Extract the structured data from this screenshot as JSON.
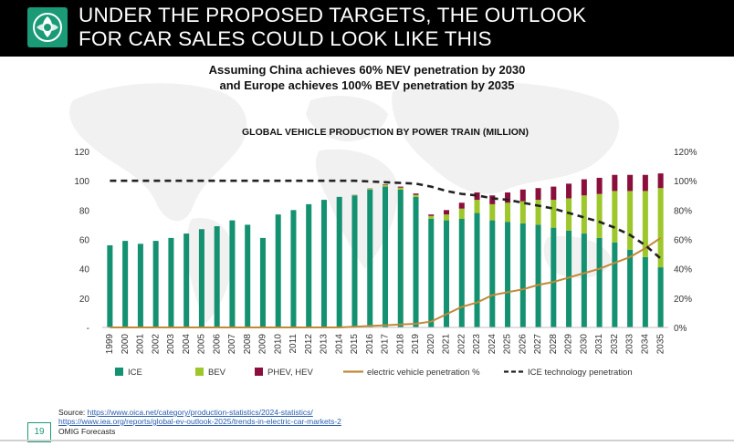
{
  "header": {
    "title_line1": "UNDER THE PROPOSED TARGETS, THE OUTLOOK",
    "title_line2": "FOR CAR SALES COULD LOOK LIKE THIS"
  },
  "subtitle": {
    "line1": "Assuming China achieves 60% NEV penetration by 2030",
    "line2": "and Europe achieves 100% BEV penetration by 2035"
  },
  "chart_data": {
    "type": "bar",
    "stacked": true,
    "title": "GLOBAL VEHICLE PRODUCTION BY  POWER TRAIN (MILLION)",
    "categories": [
      "1999",
      "2000",
      "2001",
      "2002",
      "2003",
      "2004",
      "2005",
      "2006",
      "2007",
      "2008",
      "2009",
      "2010",
      "2011",
      "2012",
      "2013",
      "2014",
      "2015",
      "2016",
      "2017",
      "2018",
      "2019",
      "2020",
      "2021",
      "2022",
      "2023",
      "2024",
      "2025",
      "2026",
      "2027",
      "2028",
      "2029",
      "2030",
      "2031",
      "2032",
      "2033",
      "2034",
      "2035"
    ],
    "series": [
      {
        "name": "ICE",
        "kind": "bar",
        "axis": "left",
        "color": "#149170",
        "values": [
          56,
          59,
          57,
          59,
          61,
          64,
          67,
          69,
          73,
          70,
          61,
          77,
          80,
          84,
          87,
          89,
          90,
          94,
          96,
          94,
          89,
          74,
          73,
          74,
          78,
          73,
          72,
          71,
          70,
          68,
          66,
          64,
          61,
          58,
          53,
          48,
          41
        ]
      },
      {
        "name": "BEV",
        "kind": "bar",
        "axis": "left",
        "color": "#9dc72a",
        "values": [
          0,
          0,
          0,
          0,
          0,
          0,
          0,
          0,
          0,
          0,
          0,
          0,
          0,
          0,
          0,
          0,
          0.3,
          0.5,
          1,
          1.3,
          1.4,
          2,
          4,
          7,
          9,
          11,
          13,
          15,
          17,
          19,
          22,
          26,
          30,
          35,
          40,
          45,
          54
        ]
      },
      {
        "name": "PHEV, HEV",
        "kind": "bar",
        "axis": "left",
        "color": "#8b0f3c",
        "values": [
          0,
          0,
          0,
          0,
          0,
          0,
          0,
          0,
          0,
          0,
          0,
          0,
          0,
          0,
          0,
          0,
          0.1,
          0.2,
          0.4,
          0.7,
          0.9,
          1,
          3,
          4,
          5,
          6,
          7,
          8,
          8,
          9,
          10,
          11,
          11,
          11,
          11,
          11,
          10
        ]
      },
      {
        "name": "electric vehicle penetration %",
        "kind": "line",
        "axis": "right",
        "color": "#c08a3a",
        "dash": "solid",
        "values": [
          0,
          0,
          0,
          0,
          0,
          0,
          0,
          0,
          0,
          0,
          0,
          0,
          0,
          0,
          0,
          0,
          0.5,
          1,
          1.5,
          2,
          2.5,
          4,
          9,
          14,
          17,
          22,
          24,
          26,
          29,
          31,
          34,
          37,
          40,
          44,
          48,
          54,
          61
        ]
      },
      {
        "name": "ICE technology penetration",
        "kind": "line",
        "axis": "right",
        "color": "#222222",
        "dash": "dashed",
        "values": [
          100,
          100,
          100,
          100,
          100,
          100,
          100,
          100,
          100,
          100,
          100,
          100,
          100,
          100,
          100,
          100,
          100,
          99.5,
          99,
          98.5,
          98,
          96,
          93,
          91,
          90,
          88,
          87,
          85,
          83,
          81,
          78,
          75,
          72,
          68,
          63,
          56,
          47
        ]
      }
    ],
    "y_left": {
      "min": 0,
      "max": 120,
      "ticks": [
        0,
        20,
        40,
        60,
        80,
        100,
        120
      ],
      "tick_labels": [
        "-",
        "20",
        "40",
        "60",
        "80",
        "100",
        "120"
      ]
    },
    "y_right": {
      "min": 0,
      "max": 120,
      "ticks": [
        0,
        20,
        40,
        60,
        80,
        100,
        120
      ],
      "tick_labels": [
        "0%",
        "20%",
        "40%",
        "60%",
        "80%",
        "100%",
        "120%"
      ]
    },
    "grid": false,
    "legend": "bottom"
  },
  "sources": {
    "label": "Source: ",
    "link1": "https://www.oica.net/category/production-statistics/2024-statistics/",
    "link2": "https://www.iea.org/reports/global-ev-outlook-2025/trends-in-electric-car-markets-2",
    "line3": "OMIG Forecasts"
  },
  "page_number": "19"
}
